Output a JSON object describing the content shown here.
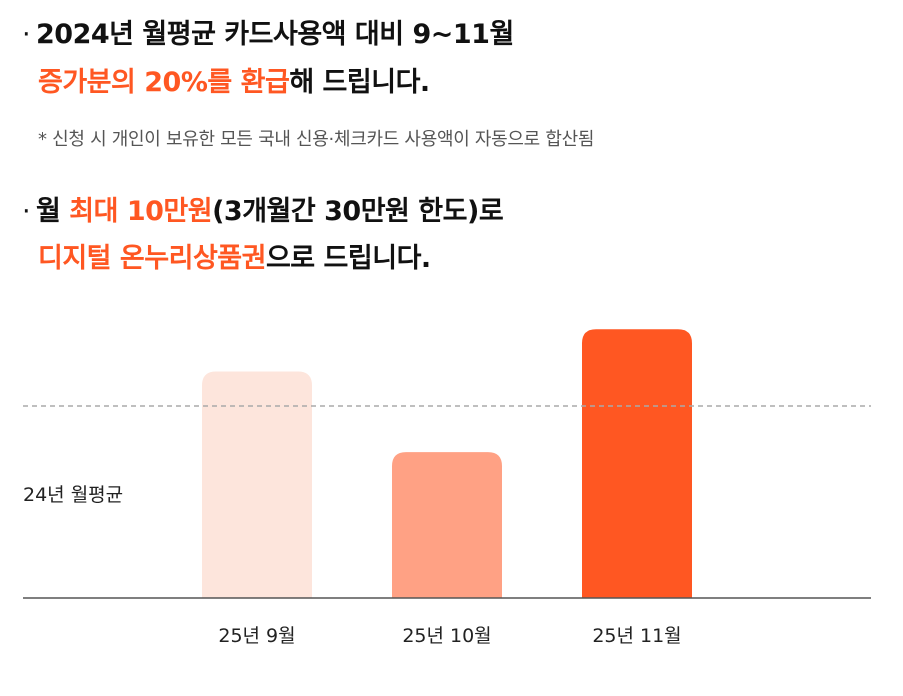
{
  "headline1": {
    "bullet": "·",
    "line1": "2024년 월평균 카드사용액 대비 9~11월",
    "line2_accent": "증가분의 20%를 환급",
    "line2_rest": "해 드립니다."
  },
  "footnote": "* 신청 시 개인이 보유한 모든 국내 신용·체크카드 사용액이 자동으로 합산됨",
  "headline2": {
    "bullet": "·",
    "line1_pre": "월 ",
    "line1_accent": "최대 10만원",
    "line1_rest": "(3개월간 30만원 한도)로",
    "line2_accent": "디지털 온누리상품권",
    "line2_rest": "으로 드립니다."
  },
  "chart_data": {
    "type": "bar",
    "categories": [
      "25년 9월",
      "25년 10월",
      "25년 11월"
    ],
    "values": [
      1.18,
      0.76,
      1.4
    ],
    "reference_line": {
      "label": "24년 월평균",
      "value": 1.0,
      "style": "dashed"
    },
    "ylim": [
      0,
      1.5
    ],
    "bar_colors": [
      "#fde5dc",
      "#ffa184",
      "#ff5722"
    ],
    "grid": false,
    "title": "",
    "xlabel": "",
    "ylabel": ""
  },
  "colors": {
    "accent": "#ff5722",
    "text": "#111111",
    "muted": "#555555",
    "axis": "#555555",
    "reference": "#aaaaaa"
  }
}
